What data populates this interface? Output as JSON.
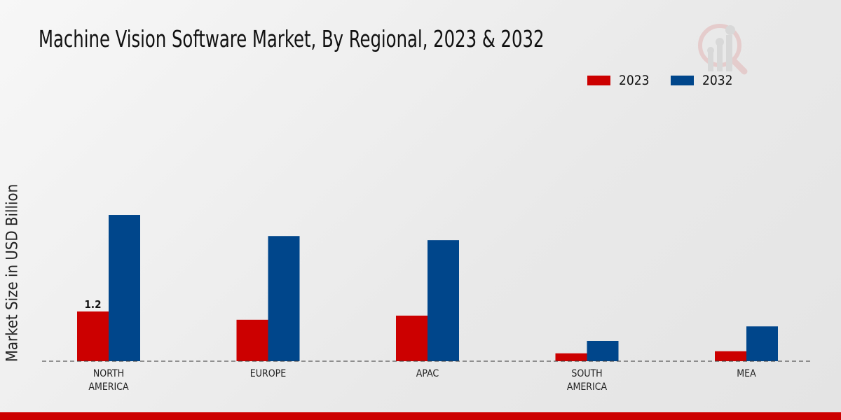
{
  "chart_data": {
    "type": "bar",
    "title": "Machine Vision Software Market, By Regional, 2023 & 2032",
    "ylabel": "Market Size in USD Billion",
    "xlabel": "",
    "categories": [
      "NORTH AMERICA",
      "EUROPE",
      "APAC",
      "SOUTH AMERICA",
      "MEA"
    ],
    "category_lines": [
      [
        "NORTH",
        "AMERICA"
      ],
      [
        "EUROPE"
      ],
      [
        "APAC"
      ],
      [
        "SOUTH",
        "AMERICA"
      ],
      [
        "MEA"
      ]
    ],
    "series": [
      {
        "name": "2023",
        "color": "#cc0000",
        "values": [
          1.2,
          1.0,
          1.1,
          0.19,
          0.24
        ]
      },
      {
        "name": "2032",
        "color": "#00468b",
        "values": [
          3.53,
          3.02,
          2.92,
          0.49,
          0.84
        ]
      }
    ],
    "data_labels": [
      {
        "series": "2023",
        "category": "NORTH AMERICA",
        "text": "1.2"
      }
    ],
    "legend_position": "top-right",
    "grid": false,
    "baseline_style": "dashed"
  }
}
